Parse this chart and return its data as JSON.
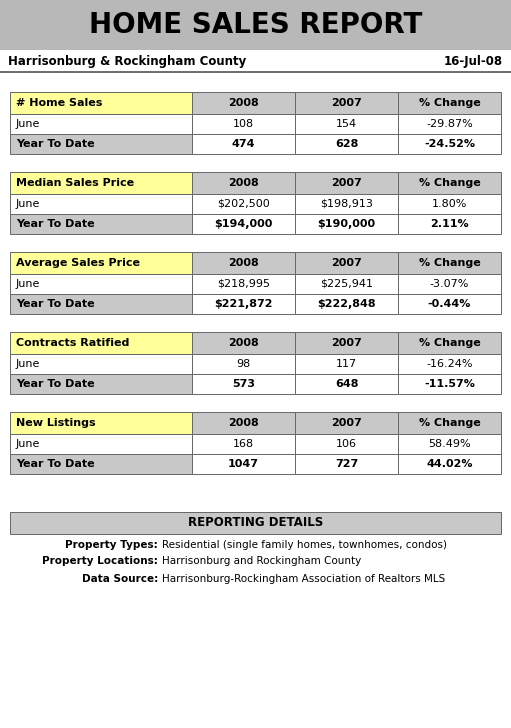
{
  "title": "HOME SALES REPORT",
  "subtitle_left": "Harrisonburg & Rockingham County",
  "subtitle_right": "16-Jul-08",
  "title_bg": "#b8b8b8",
  "header_bg": "#c8c8c8",
  "yellow_bg": "#ffff99",
  "row_white_bg": "#ffffff",
  "row_grey_bg": "#c8c8c8",
  "reporting_bg": "#c8c8c8",
  "border_color": "#666666",
  "tables": [
    {
      "header": "# Home Sales",
      "col_headers": [
        "2008",
        "2007",
        "% Change"
      ],
      "rows": [
        [
          "June",
          "108",
          "154",
          "-29.87%",
          false
        ],
        [
          "Year To Date",
          "474",
          "628",
          "-24.52%",
          true
        ]
      ]
    },
    {
      "header": "Median Sales Price",
      "col_headers": [
        "2008",
        "2007",
        "% Change"
      ],
      "rows": [
        [
          "June",
          "$202,500",
          "$198,913",
          "1.80%",
          false
        ],
        [
          "Year To Date",
          "$194,000",
          "$190,000",
          "2.11%",
          true
        ]
      ]
    },
    {
      "header": "Average Sales Price",
      "col_headers": [
        "2008",
        "2007",
        "% Change"
      ],
      "rows": [
        [
          "June",
          "$218,995",
          "$225,941",
          "-3.07%",
          false
        ],
        [
          "Year To Date",
          "$221,872",
          "$222,848",
          "-0.44%",
          true
        ]
      ]
    },
    {
      "header": "Contracts Ratified",
      "col_headers": [
        "2008",
        "2007",
        "% Change"
      ],
      "rows": [
        [
          "June",
          "98",
          "117",
          "-16.24%",
          false
        ],
        [
          "Year To Date",
          "573",
          "648",
          "-11.57%",
          true
        ]
      ]
    },
    {
      "header": "New Listings",
      "col_headers": [
        "2008",
        "2007",
        "% Change"
      ],
      "rows": [
        [
          "June",
          "168",
          "106",
          "58.49%",
          false
        ],
        [
          "Year To Date",
          "1047",
          "727",
          "44.02%",
          true
        ]
      ]
    }
  ],
  "reporting_title": "REPORTING DETAILS",
  "reporting_lines": [
    [
      "Property Types:",
      "Residential (single family homes, townhomes, condos)"
    ],
    [
      "Property Locations:",
      "Harrisonburg and Rockingham County"
    ],
    [
      "Data Source:",
      "Harrisonburg-Rockingham Association of Realtors MLS"
    ]
  ],
  "title_fontsize": 20,
  "subtitle_fontsize": 8.5,
  "header_fontsize": 8,
  "cell_fontsize": 8,
  "report_title_fontsize": 8.5,
  "report_line_fontsize": 7.5
}
